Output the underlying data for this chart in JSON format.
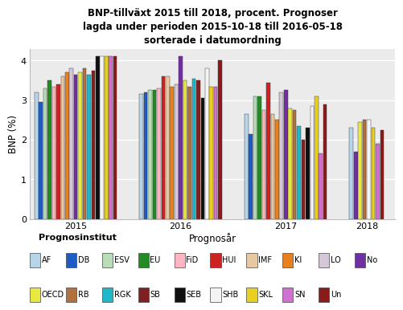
{
  "title": "BNP-tillväxt 2015 till 2018, procent. Prognoser\nlagda under perioden 2015-10-18 till 2016-05-18\nsorterade i datumordning",
  "xlabel": "Prognosår",
  "ylabel": "BNP (%)",
  "ylim": [
    0,
    4.3
  ],
  "yticks": [
    0,
    1,
    2,
    3,
    4
  ],
  "years": [
    "2015",
    "2016",
    "2017",
    "2018"
  ],
  "institutions": [
    "AF",
    "DB",
    "ESV",
    "EU",
    "FiD",
    "HUI",
    "IMF",
    "KI",
    "LO",
    "No",
    "OECD",
    "RB",
    "RGK",
    "SB",
    "SEB",
    "SHB",
    "SKL",
    "SN",
    "Un"
  ],
  "colors": {
    "AF": "#b8d4e8",
    "DB": "#1f5bc4",
    "ESV": "#b8ddb8",
    "EU": "#228B22",
    "FiD": "#ffb6c1",
    "HUI": "#cc2222",
    "IMF": "#e8c8a0",
    "KI": "#e88020",
    "LO": "#d4c8d8",
    "No": "#7030a0",
    "OECD": "#e8e840",
    "RB": "#b07040",
    "RGK": "#20b8c8",
    "SB": "#802020",
    "SEB": "#101010",
    "SHB": "#f4f4f4",
    "SKL": "#e8d020",
    "SN": "#d070d0",
    "Un": "#8b1a1a"
  },
  "data": {
    "2015": {
      "AF": 3.2,
      "DB": 2.95,
      "ESV": 3.3,
      "EU": 3.5,
      "FiD": 3.35,
      "HUI": 3.4,
      "IMF": 3.6,
      "KI": 3.7,
      "LO": 3.8,
      "No": 3.65,
      "OECD": 3.7,
      "RB": 3.8,
      "RGK": 3.65,
      "SB": 3.75,
      "SEB": 4.1,
      "SHB": 4.1,
      "SKL": 4.1,
      "SN": 4.1,
      "Un": 4.1
    },
    "2016": {
      "AF": 3.15,
      "DB": 3.2,
      "ESV": 3.25,
      "EU": 3.25,
      "FiD": 3.3,
      "HUI": 3.6,
      "IMF": 3.6,
      "KI": 3.35,
      "LO": 3.4,
      "No": 4.1,
      "OECD": 3.5,
      "RB": 3.35,
      "RGK": 3.55,
      "SB": 3.5,
      "SEB": 3.05,
      "SHB": 3.8,
      "SKL": 3.35,
      "SN": 3.35,
      "Un": 4.0
    },
    "2017": {
      "AF": 2.65,
      "DB": 2.15,
      "ESV": 3.1,
      "EU": 3.1,
      "FiD": 2.75,
      "HUI": 3.45,
      "IMF": 2.65,
      "KI": 2.5,
      "LO": 3.2,
      "No": 3.25,
      "OECD": 2.8,
      "RB": 2.75,
      "RGK": 2.35,
      "SB": 2.0,
      "SEB": 2.3,
      "SHB": 2.85,
      "SKL": 3.1,
      "SN": 1.65,
      "Un": 2.9
    },
    "2018": {
      "AF": 2.3,
      "No": 1.7,
      "OECD": 2.45,
      "RB": 2.5,
      "SHB": 2.5,
      "SKL": 2.3,
      "SN": 1.9,
      "Un": 2.25
    }
  },
  "background_color": "#ebebeb",
  "legend_title": "Prognosinstitut",
  "legend_order": [
    "AF",
    "DB",
    "ESV",
    "EU",
    "FiD",
    "HUI",
    "IMF",
    "KI",
    "LO",
    "No",
    "OECD",
    "RB",
    "RGK",
    "SB",
    "SEB",
    "SHB",
    "SKL",
    "SN",
    "Un"
  ]
}
